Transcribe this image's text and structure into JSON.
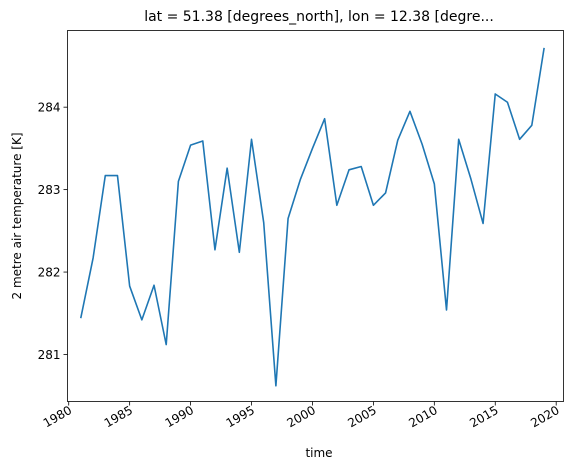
{
  "chart_data": {
    "type": "line",
    "title": "lat = 51.38 [degrees_north], lon = 12.38 [degre...",
    "xlabel": "time",
    "ylabel": "2 metre air temperature [K]",
    "xlim": [
      1979.9,
      2020.6
    ],
    "ylim": [
      280.43,
      284.93
    ],
    "xticks": [
      1980,
      1985,
      1990,
      1995,
      2000,
      2005,
      2010,
      2015,
      2020
    ],
    "yticks": [
      281,
      282,
      283,
      284
    ],
    "grid": false,
    "legend": false,
    "line_color": "#1f77b4",
    "series": [
      {
        "x": [
          1981,
          1982,
          1983,
          1984,
          1985,
          1986,
          1987,
          1988,
          1989,
          1990,
          1991,
          1992,
          1993,
          1994,
          1995,
          1996,
          1997,
          1998,
          1999,
          2000,
          2001,
          2002,
          2003,
          2004,
          2005,
          2006,
          2007,
          2008,
          2009,
          2010,
          2011,
          2012,
          2013,
          2014,
          2015,
          2016,
          2017,
          2018,
          2019
        ],
        "values": [
          281.45,
          282.17,
          283.17,
          283.17,
          281.83,
          281.42,
          281.84,
          281.12,
          283.1,
          283.54,
          283.59,
          282.27,
          283.26,
          282.24,
          283.61,
          282.6,
          280.62,
          282.65,
          283.12,
          283.5,
          283.86,
          282.81,
          283.24,
          283.28,
          282.81,
          282.96,
          283.6,
          283.95,
          283.55,
          283.07,
          281.54,
          283.61,
          283.13,
          282.59,
          284.16,
          284.06,
          283.61,
          283.78,
          284.71
        ]
      }
    ]
  }
}
